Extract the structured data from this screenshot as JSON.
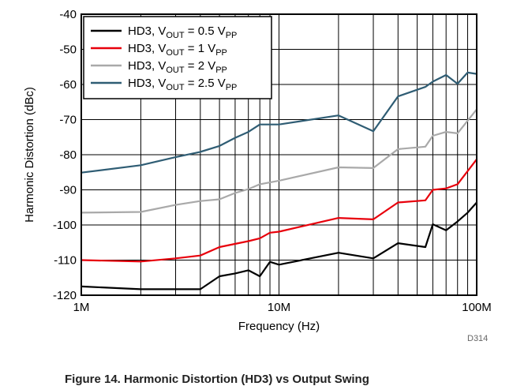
{
  "chart_data": {
    "type": "line",
    "xscale": "log",
    "xlim": [
      1000000,
      100000000
    ],
    "ylim": [
      -120,
      -40
    ],
    "grid": true,
    "xlabel": "Frequency (Hz)",
    "ylabel": "Harmonic Distortion (dBc)",
    "xtick_labels": [
      "1M",
      "10M",
      "100M"
    ],
    "ytick_labels": [
      "-40",
      "-50",
      "-60",
      "-70",
      "-80",
      "-90",
      "-100",
      "-110",
      "-120"
    ],
    "legend_position": "top-left",
    "series": [
      {
        "name": "HD3, VOUT = 0.5 VPP",
        "label_parts": [
          "HD3, V",
          "OUT",
          " = 0.5 V",
          "PP"
        ],
        "color": "#000000",
        "x": [
          1000000,
          2000000,
          3000000,
          4000000,
          5000000,
          6000000,
          7000000,
          8000000,
          9000000,
          10000000,
          20000000,
          30000000,
          40000000,
          55000000,
          60000000,
          70000000,
          80000000,
          90000000,
          100000000
        ],
        "y": [
          -117.5,
          -118.3,
          -118.3,
          -118.3,
          -114.6,
          -113.8,
          -112.9,
          -114.6,
          -110.5,
          -111.3,
          -107.9,
          -109.5,
          -105.2,
          -106.3,
          -99.8,
          -101.5,
          -99.0,
          -96.5,
          -93.6
        ]
      },
      {
        "name": "HD3, VOUT = 1 VPP",
        "label_parts": [
          "HD3, V",
          "OUT",
          " = 1 V",
          "PP"
        ],
        "color": "#e8000b",
        "x": [
          1000000,
          2000000,
          3000000,
          4000000,
          5000000,
          7000000,
          8000000,
          9000000,
          10000000,
          20000000,
          30000000,
          40000000,
          55000000,
          60000000,
          70000000,
          80000000,
          100000000
        ],
        "y": [
          -110.0,
          -110.4,
          -109.5,
          -108.7,
          -106.3,
          -104.6,
          -103.8,
          -102.2,
          -101.9,
          -98.0,
          -98.4,
          -93.6,
          -93.0,
          -90.0,
          -89.6,
          -88.4,
          -81.3
        ]
      },
      {
        "name": "HD3, VOUT = 2 VPP",
        "label_parts": [
          "HD3, V",
          "OUT",
          " = 2 V",
          "PP"
        ],
        "color": "#a9a9a9",
        "x": [
          1000000,
          2000000,
          3000000,
          4000000,
          5000000,
          6000000,
          7000000,
          8000000,
          10000000,
          20000000,
          30000000,
          40000000,
          55000000,
          60000000,
          70000000,
          80000000,
          100000000
        ],
        "y": [
          -96.5,
          -96.3,
          -94.3,
          -93.2,
          -92.7,
          -90.9,
          -89.8,
          -88.4,
          -87.4,
          -83.6,
          -83.8,
          -78.4,
          -77.7,
          -74.6,
          -73.5,
          -73.9,
          -67.1
        ]
      },
      {
        "name": "HD3, VOUT = 2.5 VPP",
        "label_parts": [
          "HD3, V",
          "OUT",
          " = 2.5 V",
          "PP"
        ],
        "color": "#2f5d74",
        "x": [
          1000000,
          2000000,
          3000000,
          4000000,
          5000000,
          6000000,
          7000000,
          8000000,
          10000000,
          20000000,
          30000000,
          40000000,
          55000000,
          60000000,
          70000000,
          80000000,
          90000000,
          100000000
        ],
        "y": [
          -85.1,
          -83.0,
          -80.7,
          -79.2,
          -77.5,
          -75.2,
          -73.5,
          -71.4,
          -71.4,
          -68.8,
          -73.3,
          -63.4,
          -60.7,
          -59.2,
          -57.3,
          -59.8,
          -56.6,
          -57.0
        ]
      }
    ]
  },
  "figure_code": "D314",
  "caption": "Figure 14. Harmonic Distortion (HD3) vs Output Swing"
}
